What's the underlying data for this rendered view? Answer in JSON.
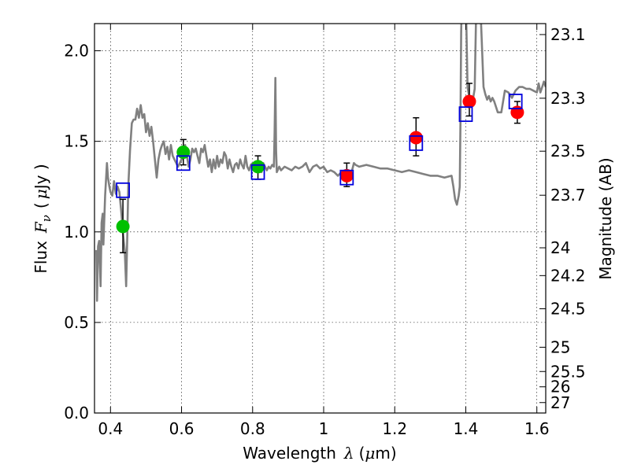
{
  "chart_data": {
    "type": "scatter",
    "xlabel": {
      "text": "Wavelength",
      "symbol": "λ",
      "unit_open": "(",
      "unit_mu": "μ",
      "unit_rest": "m)"
    },
    "ylabel": {
      "text": "Flux",
      "symbol": "F",
      "sub": "ν",
      "unit_open": "(",
      "unit_mu": "μ",
      "unit_rest": "Jy )"
    },
    "y2label": "Magnitude (AB)",
    "xlim": [
      0.355,
      1.625
    ],
    "ylim": [
      0.0,
      2.15
    ],
    "xticks": [
      0.4,
      0.6,
      0.8,
      1.0,
      1.2,
      1.4,
      1.6
    ],
    "xtick_labels": [
      "0.4",
      "0.6",
      "0.8",
      "1",
      "1.2",
      "1.4",
      "1.6"
    ],
    "yticks": [
      0.0,
      0.5,
      1.0,
      1.5,
      2.0
    ],
    "ytick_labels": [
      "0.0",
      "0.5",
      "1.0",
      "1.5",
      "2.0"
    ],
    "y2_ticks": [
      23.1,
      23.3,
      23.5,
      23.7,
      24,
      24.2,
      24.5,
      25,
      25.5,
      26,
      27
    ],
    "y2_tick_labels": [
      "23.1",
      "23.3",
      "23.5",
      "23.7",
      "24",
      "24.2",
      "24.5",
      "25",
      "25.5",
      "26",
      "27"
    ],
    "grid": true,
    "colors": {
      "model": "#808080",
      "green": "#00c000",
      "red": "#ff0000",
      "box": "#0000dd",
      "error": "#000000"
    },
    "series": [
      {
        "kind": "line",
        "points": [
          [
            0.36,
            0.9
          ],
          [
            0.362,
            0.62
          ],
          [
            0.365,
            0.92
          ],
          [
            0.368,
            0.95
          ],
          [
            0.372,
            0.7
          ],
          [
            0.375,
            1.05
          ],
          [
            0.378,
            1.1
          ],
          [
            0.38,
            0.93
          ],
          [
            0.385,
            1.2
          ],
          [
            0.39,
            1.38
          ],
          [
            0.393,
            1.3
          ],
          [
            0.397,
            1.25
          ],
          [
            0.4,
            1.22
          ],
          [
            0.405,
            1.2
          ],
          [
            0.41,
            1.28
          ],
          [
            0.415,
            1.21
          ],
          [
            0.42,
            1.25
          ],
          [
            0.425,
            1.22
          ],
          [
            0.43,
            1.12
          ],
          [
            0.433,
            1.05
          ],
          [
            0.436,
            0.98
          ],
          [
            0.44,
            0.9
          ],
          [
            0.442,
            0.8
          ],
          [
            0.444,
            0.7
          ],
          [
            0.447,
            0.95
          ],
          [
            0.45,
            1.25
          ],
          [
            0.455,
            1.45
          ],
          [
            0.46,
            1.6
          ],
          [
            0.465,
            1.62
          ],
          [
            0.47,
            1.62
          ],
          [
            0.475,
            1.68
          ],
          [
            0.48,
            1.63
          ],
          [
            0.485,
            1.7
          ],
          [
            0.49,
            1.63
          ],
          [
            0.495,
            1.65
          ],
          [
            0.5,
            1.55
          ],
          [
            0.505,
            1.6
          ],
          [
            0.51,
            1.53
          ],
          [
            0.515,
            1.58
          ],
          [
            0.52,
            1.5
          ],
          [
            0.525,
            1.4
          ],
          [
            0.53,
            1.3
          ],
          [
            0.535,
            1.4
          ],
          [
            0.54,
            1.45
          ],
          [
            0.545,
            1.48
          ],
          [
            0.55,
            1.5
          ],
          [
            0.555,
            1.43
          ],
          [
            0.56,
            1.47
          ],
          [
            0.565,
            1.4
          ],
          [
            0.57,
            1.48
          ],
          [
            0.575,
            1.42
          ],
          [
            0.58,
            1.4
          ],
          [
            0.585,
            1.38
          ],
          [
            0.59,
            1.36
          ],
          [
            0.595,
            1.38
          ],
          [
            0.6,
            1.4
          ],
          [
            0.605,
            1.46
          ],
          [
            0.61,
            1.48
          ],
          [
            0.615,
            1.42
          ],
          [
            0.62,
            1.36
          ],
          [
            0.625,
            1.4
          ],
          [
            0.63,
            1.46
          ],
          [
            0.635,
            1.44
          ],
          [
            0.64,
            1.46
          ],
          [
            0.645,
            1.42
          ],
          [
            0.65,
            1.38
          ],
          [
            0.655,
            1.46
          ],
          [
            0.66,
            1.44
          ],
          [
            0.665,
            1.48
          ],
          [
            0.67,
            1.42
          ],
          [
            0.675,
            1.36
          ],
          [
            0.68,
            1.4
          ],
          [
            0.685,
            1.33
          ],
          [
            0.69,
            1.4
          ],
          [
            0.695,
            1.35
          ],
          [
            0.7,
            1.42
          ],
          [
            0.705,
            1.36
          ],
          [
            0.71,
            1.4
          ],
          [
            0.715,
            1.38
          ],
          [
            0.72,
            1.44
          ],
          [
            0.725,
            1.42
          ],
          [
            0.73,
            1.35
          ],
          [
            0.735,
            1.4
          ],
          [
            0.74,
            1.36
          ],
          [
            0.745,
            1.33
          ],
          [
            0.75,
            1.37
          ],
          [
            0.755,
            1.38
          ],
          [
            0.76,
            1.35
          ],
          [
            0.765,
            1.4
          ],
          [
            0.77,
            1.37
          ],
          [
            0.775,
            1.35
          ],
          [
            0.78,
            1.42
          ],
          [
            0.785,
            1.36
          ],
          [
            0.79,
            1.34
          ],
          [
            0.795,
            1.37
          ],
          [
            0.8,
            1.38
          ],
          [
            0.81,
            1.36
          ],
          [
            0.82,
            1.35
          ],
          [
            0.825,
            1.33
          ],
          [
            0.83,
            1.38
          ],
          [
            0.835,
            1.36
          ],
          [
            0.84,
            1.34
          ],
          [
            0.845,
            1.36
          ],
          [
            0.85,
            1.35
          ],
          [
            0.855,
            1.37
          ],
          [
            0.86,
            1.36
          ],
          [
            0.862,
            1.55
          ],
          [
            0.864,
            1.85
          ],
          [
            0.866,
            1.45
          ],
          [
            0.868,
            1.33
          ],
          [
            0.875,
            1.36
          ],
          [
            0.88,
            1.34
          ],
          [
            0.89,
            1.36
          ],
          [
            0.9,
            1.35
          ],
          [
            0.91,
            1.34
          ],
          [
            0.92,
            1.36
          ],
          [
            0.93,
            1.35
          ],
          [
            0.94,
            1.36
          ],
          [
            0.95,
            1.38
          ],
          [
            0.96,
            1.33
          ],
          [
            0.97,
            1.36
          ],
          [
            0.98,
            1.37
          ],
          [
            0.99,
            1.35
          ],
          [
            1.0,
            1.36
          ],
          [
            1.01,
            1.33
          ],
          [
            1.02,
            1.34
          ],
          [
            1.03,
            1.33
          ],
          [
            1.04,
            1.31
          ],
          [
            1.05,
            1.33
          ],
          [
            1.06,
            1.34
          ],
          [
            1.07,
            1.33
          ],
          [
            1.08,
            1.34
          ],
          [
            1.085,
            1.38
          ],
          [
            1.09,
            1.37
          ],
          [
            1.1,
            1.36
          ],
          [
            1.12,
            1.37
          ],
          [
            1.14,
            1.36
          ],
          [
            1.16,
            1.35
          ],
          [
            1.18,
            1.35
          ],
          [
            1.2,
            1.34
          ],
          [
            1.22,
            1.33
          ],
          [
            1.24,
            1.34
          ],
          [
            1.26,
            1.33
          ],
          [
            1.28,
            1.32
          ],
          [
            1.3,
            1.31
          ],
          [
            1.32,
            1.31
          ],
          [
            1.34,
            1.3
          ],
          [
            1.36,
            1.31
          ],
          [
            1.365,
            1.25
          ],
          [
            1.37,
            1.18
          ],
          [
            1.375,
            1.15
          ],
          [
            1.38,
            1.2
          ],
          [
            1.383,
            1.25
          ],
          [
            1.385,
            1.6
          ],
          [
            1.387,
            2.1
          ],
          [
            1.389,
            2.3
          ],
          [
            1.392,
            2.3
          ],
          [
            1.4,
            2.3
          ],
          [
            1.405,
            1.8
          ],
          [
            1.41,
            1.74
          ],
          [
            1.415,
            1.71
          ],
          [
            1.42,
            1.73
          ],
          [
            1.425,
            1.79
          ],
          [
            1.43,
            2.3
          ],
          [
            1.44,
            2.3
          ],
          [
            1.445,
            2.05
          ],
          [
            1.45,
            1.8
          ],
          [
            1.455,
            1.76
          ],
          [
            1.46,
            1.73
          ],
          [
            1.465,
            1.75
          ],
          [
            1.47,
            1.72
          ],
          [
            1.475,
            1.74
          ],
          [
            1.48,
            1.72
          ],
          [
            1.49,
            1.66
          ],
          [
            1.5,
            1.66
          ],
          [
            1.51,
            1.78
          ],
          [
            1.52,
            1.77
          ],
          [
            1.53,
            1.74
          ],
          [
            1.54,
            1.78
          ],
          [
            1.55,
            1.8
          ],
          [
            1.56,
            1.8
          ],
          [
            1.57,
            1.79
          ],
          [
            1.58,
            1.79
          ],
          [
            1.59,
            1.78
          ],
          [
            1.6,
            1.77
          ],
          [
            1.605,
            1.82
          ],
          [
            1.61,
            1.77
          ],
          [
            1.615,
            1.8
          ],
          [
            1.62,
            1.83
          ],
          [
            1.625,
            1.8
          ]
        ]
      },
      {
        "kind": "points",
        "marker": "circle",
        "color": "green",
        "points": [
          {
            "x": 0.435,
            "y": 1.03,
            "lo": 0.885,
            "hi": 1.18
          },
          {
            "x": 0.605,
            "y": 1.44,
            "lo": 1.37,
            "hi": 1.51
          },
          {
            "x": 0.815,
            "y": 1.36,
            "lo": 1.29,
            "hi": 1.42
          }
        ]
      },
      {
        "kind": "points",
        "marker": "circle",
        "color": "red",
        "points": [
          {
            "x": 1.065,
            "y": 1.31,
            "lo": 1.25,
            "hi": 1.38
          },
          {
            "x": 1.26,
            "y": 1.52,
            "lo": 1.42,
            "hi": 1.63
          },
          {
            "x": 1.41,
            "y": 1.72,
            "lo": 1.64,
            "hi": 1.82
          },
          {
            "x": 1.545,
            "y": 1.66,
            "lo": 1.6,
            "hi": 1.72
          }
        ]
      },
      {
        "kind": "points",
        "marker": "square",
        "color": "box",
        "points": [
          {
            "x": 0.435,
            "y": 1.23
          },
          {
            "x": 0.605,
            "y": 1.38
          },
          {
            "x": 0.815,
            "y": 1.33
          },
          {
            "x": 1.065,
            "y": 1.3
          },
          {
            "x": 1.26,
            "y": 1.49
          },
          {
            "x": 1.4,
            "y": 1.65
          },
          {
            "x": 1.54,
            "y": 1.72
          }
        ]
      }
    ]
  }
}
